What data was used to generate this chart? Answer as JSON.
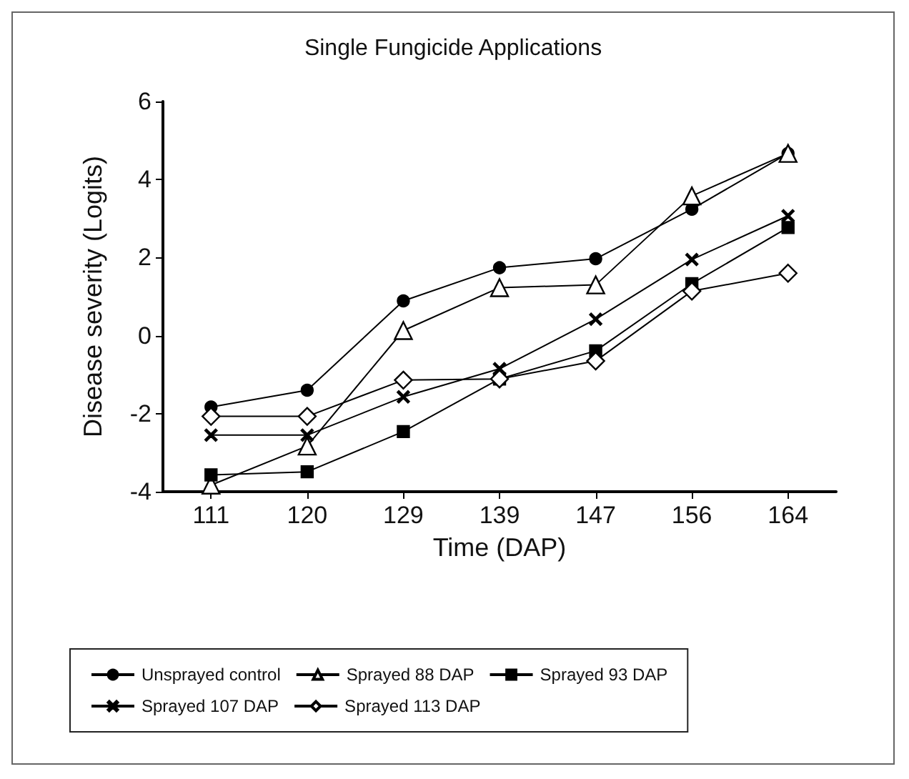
{
  "chart_data": {
    "type": "line",
    "title": "Single Fungicide Applications",
    "xlabel": "Time (DAP)",
    "ylabel": "Disease severity (Logits)",
    "categories": [
      "111",
      "120",
      "129",
      "139",
      "147",
      "156",
      "164"
    ],
    "series": [
      {
        "name": "Unsprayed control",
        "color": "#000000",
        "marker": "circle",
        "values": [
          -1.83,
          -1.4,
          0.89,
          1.74,
          1.97,
          3.24,
          4.67
        ]
      },
      {
        "name": "Sprayed 88 DAP",
        "color": "#000000",
        "marker": "triangle",
        "values": [
          -3.83,
          -2.83,
          0.13,
          1.23,
          1.3,
          3.58,
          4.67
        ]
      },
      {
        "name": "Sprayed 93 DAP",
        "color": "#000000",
        "marker": "square",
        "values": [
          -3.57,
          -3.49,
          -2.46,
          -1.11,
          -0.39,
          1.33,
          2.77
        ]
      },
      {
        "name": "Sprayed 107 DAP",
        "color": "#000000",
        "marker": "cross",
        "values": [
          -2.55,
          -2.55,
          -1.57,
          -0.85,
          0.42,
          1.95,
          3.07
        ]
      },
      {
        "name": "Sprayed 113 DAP",
        "color": "#000000",
        "marker": "diamond",
        "values": [
          -2.07,
          -2.07,
          -1.14,
          -1.11,
          -0.65,
          1.14,
          1.6
        ]
      }
    ],
    "ylim": [
      -4,
      6
    ],
    "yticks": [
      -4,
      -2,
      0,
      2,
      4,
      6
    ],
    "grid": false,
    "legend": "bottom",
    "line_style": "solid"
  }
}
